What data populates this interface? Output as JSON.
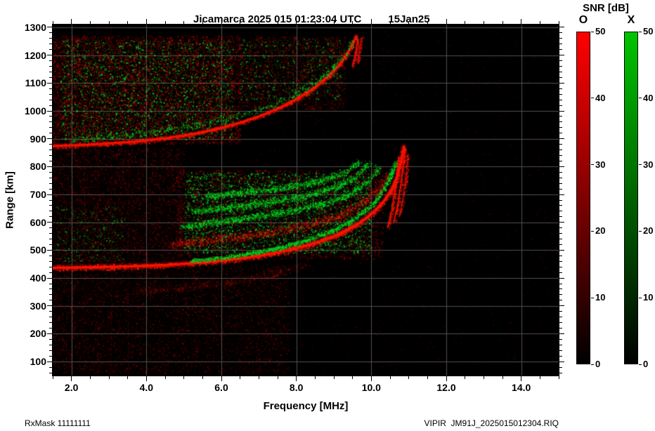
{
  "footer": {
    "left": "RxMask 11111111",
    "right": "VIPIR  JM91J_2025015012304.RIQ"
  },
  "chart_data": {
    "type": "heatmap",
    "title": "Jicamarca 2025 015 01:23:04 UTC",
    "subtitle": "15Jan25",
    "xlabel": "Frequency [MHz]",
    "ylabel": "Range [km]",
    "xlim": [
      1.5,
      15.0
    ],
    "ylim": [
      50,
      1310
    ],
    "xticks": [
      2.0,
      4.0,
      6.0,
      8.0,
      10.0,
      12.0,
      14.0
    ],
    "xtick_labels": [
      "2.0",
      "4.0",
      "6.0",
      "8.0",
      "10.0",
      "12.0",
      "14.0"
    ],
    "yticks": [
      100,
      200,
      300,
      400,
      500,
      600,
      700,
      800,
      900,
      1000,
      1100,
      1200,
      1300
    ],
    "x_minor_step": 0.5,
    "y_minor_step": 20,
    "grid_on": true,
    "grid_color": "#505050",
    "plot_bg": "#000000",
    "colorbar": {
      "title": "SNR [dB]",
      "range": [
        0,
        50
      ],
      "ticks": [
        0,
        10,
        20,
        30,
        40,
        50
      ],
      "bars": [
        {
          "label": "O",
          "top_color": "#ff0000"
        },
        {
          "label": "X",
          "top_color": "#00c400"
        }
      ]
    },
    "rfi_lines": [
      2.35,
      2.7,
      3.05,
      3.5
    ],
    "noise_regions": [
      {
        "name": "background-sparse",
        "color": "#ff0000",
        "f": [
          1.5,
          15.0
        ],
        "r": [
          55,
          1305
        ],
        "n": 6500,
        "alpha": [
          0.04,
          0.16
        ]
      },
      {
        "name": "lower-left",
        "color": "#ff0000",
        "f": [
          1.5,
          7.8
        ],
        "r": [
          60,
          450
        ],
        "n": 7000,
        "alpha": [
          0.05,
          0.28
        ]
      },
      {
        "name": "left-mid",
        "color": "#ff0000",
        "f": [
          1.5,
          5.0
        ],
        "r": [
          450,
          868
        ],
        "n": 5500,
        "alpha": [
          0.06,
          0.3
        ]
      },
      {
        "name": "left-mid-green",
        "color": "#00dd22",
        "f": [
          1.6,
          3.4
        ],
        "r": [
          460,
          660
        ],
        "n": 420,
        "alpha": [
          0.2,
          0.6
        ]
      },
      {
        "name": "upper-blob-red",
        "color": "#ff0000",
        "f": [
          1.5,
          6.5
        ],
        "r": [
          882,
          1272
        ],
        "n": 9500,
        "alpha": [
          0.12,
          0.5
        ]
      },
      {
        "name": "upper-blob-green",
        "color": "#00dd22",
        "f": [
          1.7,
          6.3
        ],
        "r": [
          900,
          1255
        ],
        "n": 2700,
        "alpha": [
          0.25,
          0.85
        ]
      },
      {
        "name": "upper-right-red",
        "color": "#ff0000",
        "f": [
          6.5,
          9.3
        ],
        "r": [
          1005,
          1268
        ],
        "n": 2600,
        "alpha": [
          0.1,
          0.42
        ]
      },
      {
        "name": "upper-right-green",
        "color": "#00dd22",
        "f": [
          6.5,
          9.2
        ],
        "r": [
          1040,
          1260
        ],
        "n": 750,
        "alpha": [
          0.2,
          0.7
        ]
      },
      {
        "name": "spread-cloud-red",
        "color": "#ff0000",
        "f": [
          4.8,
          10.3
        ],
        "r": [
          470,
          790
        ],
        "n": 5200,
        "alpha": [
          0.12,
          0.45
        ]
      },
      {
        "name": "spread-cloud-green",
        "color": "#00dd22",
        "f": [
          5.0,
          10.0
        ],
        "r": [
          490,
          780
        ],
        "n": 3800,
        "alpha": [
          0.25,
          0.85
        ]
      },
      {
        "name": "left-column",
        "color": "#ff0000",
        "f": [
          1.5,
          3.2
        ],
        "r": [
          60,
          1300
        ],
        "n": 1200,
        "alpha": [
          0.05,
          0.2
        ]
      }
    ],
    "traces": [
      {
        "name": "f-layer-first-hop-o",
        "color": "#ff1400",
        "core": 3.5,
        "glow": 9,
        "coreAlpha": 0.95,
        "speckle": 2800,
        "fuzz": 5,
        "alpha": [
          0.2,
          0.9
        ],
        "points": [
          [
            1.5,
            437
          ],
          [
            2.5,
            439
          ],
          [
            3.5,
            442
          ],
          [
            4.5,
            447
          ],
          [
            5.5,
            456
          ],
          [
            6.0,
            462
          ],
          [
            6.5,
            470
          ],
          [
            7.0,
            480
          ],
          [
            7.5,
            492
          ],
          [
            8.0,
            507
          ],
          [
            8.5,
            526
          ],
          [
            9.0,
            550
          ],
          [
            9.4,
            575
          ],
          [
            9.8,
            608
          ],
          [
            10.1,
            642
          ],
          [
            10.35,
            678
          ],
          [
            10.55,
            720
          ],
          [
            10.7,
            768
          ],
          [
            10.8,
            820
          ],
          [
            10.87,
            872
          ]
        ]
      },
      {
        "name": "f-layer-first-hop-x",
        "color": "#00d81e",
        "core": 0,
        "speckle": 2000,
        "fuzz": 4,
        "alpha": [
          0.25,
          0.95
        ],
        "points": [
          [
            5.2,
            462
          ],
          [
            6.0,
            473
          ],
          [
            6.5,
            483
          ],
          [
            7.0,
            495
          ],
          [
            7.5,
            509
          ],
          [
            8.0,
            526
          ],
          [
            8.5,
            547
          ],
          [
            9.0,
            573
          ],
          [
            9.4,
            601
          ],
          [
            9.8,
            639
          ],
          [
            10.1,
            676
          ],
          [
            10.3,
            716
          ],
          [
            10.5,
            766
          ],
          [
            10.65,
            822
          ]
        ]
      },
      {
        "name": "spread-layer-1-green",
        "color": "#00d81e",
        "core": 0,
        "speckle": 1500,
        "fuzz": 6,
        "alpha": [
          0.25,
          0.9
        ],
        "points": [
          [
            4.9,
            585
          ],
          [
            5.8,
            600
          ],
          [
            6.8,
            618
          ],
          [
            7.8,
            640
          ],
          [
            8.8,
            670
          ],
          [
            9.4,
            700
          ],
          [
            9.9,
            745
          ],
          [
            10.2,
            800
          ]
        ]
      },
      {
        "name": "spread-layer-2-green",
        "color": "#00d81e",
        "core": 0,
        "speckle": 1300,
        "fuzz": 6,
        "alpha": [
          0.25,
          0.9
        ],
        "points": [
          [
            5.2,
            640
          ],
          [
            6.2,
            655
          ],
          [
            7.2,
            672
          ],
          [
            8.2,
            695
          ],
          [
            9.0,
            725
          ],
          [
            9.6,
            765
          ],
          [
            9.95,
            815
          ]
        ]
      },
      {
        "name": "spread-layer-3-green",
        "color": "#00d81e",
        "core": 0,
        "speckle": 1100,
        "fuzz": 6,
        "alpha": [
          0.25,
          0.9
        ],
        "points": [
          [
            5.6,
            695
          ],
          [
            6.6,
            708
          ],
          [
            7.6,
            724
          ],
          [
            8.6,
            748
          ],
          [
            9.3,
            782
          ],
          [
            9.7,
            820
          ]
        ]
      },
      {
        "name": "spread-red-band",
        "color": "#ff1400",
        "core": 0,
        "speckle": 1800,
        "fuzz": 8,
        "alpha": [
          0.15,
          0.6
        ],
        "points": [
          [
            4.6,
            520
          ],
          [
            5.6,
            535
          ],
          [
            6.6,
            552
          ],
          [
            7.6,
            572
          ],
          [
            8.6,
            600
          ],
          [
            9.2,
            628
          ],
          [
            9.7,
            665
          ],
          [
            10.1,
            710
          ],
          [
            10.4,
            770
          ]
        ]
      },
      {
        "name": "f-layer-second-hop-o",
        "color": "#ff1400",
        "core": 3,
        "glow": 7,
        "coreAlpha": 0.9,
        "speckle": 2200,
        "fuzz": 4,
        "alpha": [
          0.2,
          0.8
        ],
        "points": [
          [
            1.5,
            874
          ],
          [
            2.5,
            879
          ],
          [
            3.5,
            888
          ],
          [
            4.5,
            902
          ],
          [
            5.0,
            912
          ],
          [
            5.5,
            924
          ],
          [
            6.0,
            940
          ],
          [
            6.5,
            958
          ],
          [
            7.0,
            980
          ],
          [
            7.5,
            1008
          ],
          [
            8.0,
            1042
          ],
          [
            8.5,
            1085
          ],
          [
            8.9,
            1130
          ],
          [
            9.2,
            1175
          ],
          [
            9.45,
            1225
          ],
          [
            9.6,
            1268
          ]
        ]
      },
      {
        "name": "f-layer-second-hop-green",
        "color": "#00d81e",
        "core": 0,
        "speckle": 900,
        "fuzz": 6,
        "alpha": [
          0.25,
          0.8
        ],
        "points": [
          [
            2.0,
            895
          ],
          [
            3.0,
            906
          ],
          [
            4.0,
            922
          ],
          [
            5.0,
            942
          ],
          [
            6.0,
            968
          ],
          [
            7.0,
            1002
          ],
          [
            7.8,
            1048
          ],
          [
            8.5,
            1102
          ],
          [
            9.0,
            1158
          ],
          [
            9.3,
            1208
          ],
          [
            9.5,
            1258
          ]
        ]
      },
      {
        "name": "asymptote-striation-1",
        "color": "#ff1400",
        "core": 2,
        "coreAlpha": 0.8,
        "speckle": 350,
        "fuzz": 3,
        "alpha": [
          0.2,
          0.8
        ],
        "points": [
          [
            10.45,
            585
          ],
          [
            10.55,
            645
          ],
          [
            10.62,
            705
          ],
          [
            10.68,
            765
          ],
          [
            10.73,
            835
          ]
        ]
      },
      {
        "name": "asymptote-striation-2",
        "color": "#ff1400",
        "core": 2,
        "coreAlpha": 0.7,
        "speckle": 300,
        "fuzz": 3,
        "alpha": [
          0.2,
          0.8
        ],
        "points": [
          [
            10.6,
            600
          ],
          [
            10.7,
            662
          ],
          [
            10.78,
            727
          ],
          [
            10.85,
            800
          ],
          [
            10.9,
            866
          ]
        ]
      },
      {
        "name": "asymptote-striation-3",
        "color": "#ff1400",
        "core": 1.5,
        "coreAlpha": 0.6,
        "speckle": 250,
        "fuzz": 3,
        "alpha": [
          0.2,
          0.7
        ],
        "points": [
          [
            10.75,
            622
          ],
          [
            10.85,
            692
          ],
          [
            10.93,
            767
          ],
          [
            10.98,
            846
          ]
        ]
      },
      {
        "name": "second-hop-asymptote-1",
        "color": "#ff1400",
        "core": 2,
        "coreAlpha": 0.7,
        "speckle": 200,
        "fuzz": 3,
        "alpha": [
          0.2,
          0.7
        ],
        "points": [
          [
            9.5,
            1162
          ],
          [
            9.58,
            1208
          ],
          [
            9.64,
            1258
          ]
        ]
      },
      {
        "name": "second-hop-asymptote-2",
        "color": "#ff1400",
        "core": 1.5,
        "coreAlpha": 0.6,
        "speckle": 150,
        "fuzz": 3,
        "alpha": [
          0.2,
          0.6
        ],
        "points": [
          [
            9.63,
            1172
          ],
          [
            9.69,
            1218
          ],
          [
            9.74,
            1262
          ]
        ]
      },
      {
        "name": "faint-lower-arc",
        "color": "#ff1400",
        "core": 0,
        "speckle": 700,
        "fuzz": 7,
        "alpha": [
          0.08,
          0.3
        ],
        "points": [
          [
            3.5,
            350
          ],
          [
            4.5,
            358
          ],
          [
            5.5,
            372
          ],
          [
            6.5,
            392
          ],
          [
            7.5,
            420
          ],
          [
            8.3,
            450
          ]
        ]
      }
    ]
  }
}
